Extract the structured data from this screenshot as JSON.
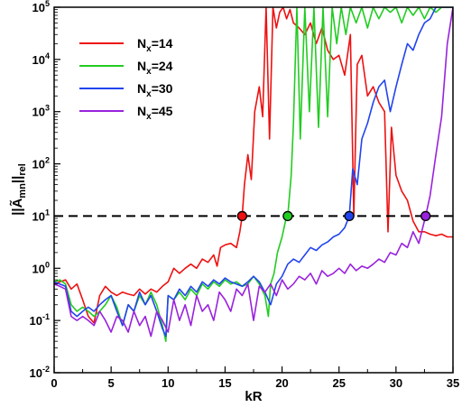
{
  "chart_data": {
    "type": "line",
    "xlabel": "kR",
    "ylabel_main": "||Ã",
    "ylabel_sub": "mn",
    "ylabel_suffix": "||",
    "ylabel_suffix_sub": "rel",
    "xlim": [
      0,
      35
    ],
    "ylim": [
      0.01,
      100000
    ],
    "yscale": "log",
    "x_ticks": [
      0,
      5,
      10,
      15,
      20,
      25,
      30,
      35
    ],
    "x_tick_labels": [
      "0",
      "5",
      "10",
      "15",
      "20",
      "25",
      "30",
      "35"
    ],
    "y_ticks": [
      0.01,
      0.1,
      1,
      10,
      100,
      1000,
      10000,
      100000
    ],
    "y_tick_labels": [
      {
        "base": "10",
        "exp": "-2"
      },
      {
        "base": "10",
        "exp": "-1"
      },
      {
        "base": "10",
        "exp": "0"
      },
      {
        "base": "10",
        "exp": "1"
      },
      {
        "base": "10",
        "exp": "2"
      },
      {
        "base": "10",
        "exp": "3"
      },
      {
        "base": "10",
        "exp": "4"
      },
      {
        "base": "10",
        "exp": "5"
      }
    ],
    "threshold": {
      "y": 10,
      "style": "dashed",
      "color": "#000000"
    },
    "legend": {
      "placement": "top-left"
    },
    "series": [
      {
        "label_main": "N",
        "label_sub": "x",
        "label_rest": "=14",
        "color": "#ee1111",
        "marker": {
          "x": 16.5,
          "y": 10
        },
        "x": [
          0,
          0.5,
          1,
          1.5,
          2,
          2.5,
          3,
          3.5,
          4,
          4.5,
          5,
          5.5,
          6,
          6.5,
          7,
          7.5,
          8,
          8.5,
          9,
          9.5,
          10,
          10.5,
          11,
          11.5,
          12,
          12.5,
          13,
          13.5,
          14,
          14.3,
          14.6,
          15,
          15.5,
          16,
          16.3,
          16.5,
          16.7,
          17,
          17.3,
          17.6,
          18,
          18.3,
          18.6,
          18.9,
          19.2,
          19.5,
          19.8,
          20.1,
          20.4,
          20.7,
          21,
          21.5,
          22,
          22.5,
          23,
          23.5,
          24,
          24.5,
          25,
          25.5,
          26,
          26.3,
          26.6,
          27,
          27.5,
          28,
          28.5,
          29,
          29.3,
          29.6,
          30,
          30.5,
          31,
          31.5,
          32,
          32.5,
          33,
          33.5,
          34,
          34.5,
          35
        ],
        "y": [
          0.5,
          0.55,
          0.6,
          0.4,
          0.5,
          0.25,
          0.12,
          0.09,
          0.3,
          0.45,
          0.35,
          0.3,
          0.35,
          0.32,
          0.3,
          0.4,
          0.32,
          0.4,
          0.35,
          0.45,
          0.55,
          1.0,
          0.8,
          1.0,
          1.2,
          1.0,
          1.5,
          1.3,
          1.8,
          1.1,
          2.5,
          2.8,
          3.0,
          2.5,
          5.0,
          10,
          40,
          150,
          50,
          1000,
          3000,
          800,
          100000,
          300,
          100000,
          40000,
          80000,
          100000,
          60000,
          90000,
          50000,
          40000,
          30000,
          50000,
          20000,
          40000,
          15000,
          10000,
          12000,
          5000,
          30000,
          10,
          8000,
          12000,
          2000,
          3000,
          1500,
          1000,
          5,
          500,
          60,
          30,
          20,
          8,
          5,
          5,
          4.5,
          4.2,
          4.5,
          4,
          4
        ]
      },
      {
        "label_main": "N",
        "label_sub": "x",
        "label_rest": "=24",
        "color": "#22cc22",
        "marker": {
          "x": 20.5,
          "y": 10
        },
        "x": [
          0,
          0.5,
          1,
          1.5,
          2,
          2.5,
          3,
          3.5,
          4,
          4.5,
          5,
          5.5,
          6,
          6.5,
          7,
          7.5,
          8,
          8.5,
          9,
          9.5,
          9.8,
          10,
          10.5,
          11,
          11.5,
          12,
          12.5,
          13,
          13.5,
          14,
          14.5,
          15,
          15.5,
          16,
          16.5,
          17,
          17.5,
          18,
          18.5,
          18.8,
          19,
          19.3,
          19.6,
          20,
          20.3,
          20.5,
          20.8,
          21,
          21.3,
          21.6,
          22,
          22.4,
          22.8,
          23.2,
          23.6,
          24,
          24.4,
          24.8,
          25.2,
          25.6,
          26,
          26.5,
          27,
          27.5,
          28,
          28.5,
          29,
          29.5,
          30,
          30.5,
          31,
          31.5,
          32,
          32.5,
          33,
          33.5,
          34,
          34.5,
          35
        ],
        "y": [
          0.55,
          0.6,
          0.5,
          0.2,
          0.15,
          0.18,
          0.15,
          0.12,
          0.15,
          0.2,
          0.3,
          0.18,
          0.08,
          0.2,
          0.15,
          0.3,
          0.2,
          0.35,
          0.2,
          0.08,
          0.04,
          0.3,
          0.25,
          0.35,
          0.25,
          0.4,
          0.3,
          0.5,
          0.4,
          0.55,
          0.45,
          0.6,
          0.5,
          0.55,
          0.45,
          0.5,
          0.7,
          0.5,
          0.3,
          0.12,
          0.5,
          0.8,
          2,
          4,
          8,
          10,
          60,
          600,
          100000,
          300,
          100000,
          1000,
          100000,
          500,
          100000,
          800,
          100000,
          20000,
          100000,
          30000,
          100000,
          50000,
          100000,
          40000,
          100000,
          60000,
          100000,
          80000,
          100000,
          50000,
          100000,
          70000,
          100000,
          60000,
          100000,
          80000,
          100000,
          100000,
          100000
        ]
      },
      {
        "label_main": "N",
        "label_sub": "x",
        "label_rest": "=30",
        "color": "#2244ee",
        "marker": {
          "x": 25.9,
          "y": 10
        },
        "x": [
          0,
          0.5,
          1,
          1.5,
          2,
          2.5,
          3,
          3.5,
          4,
          4.5,
          5,
          5.5,
          6,
          6.5,
          7,
          7.5,
          8,
          8.5,
          9,
          9.5,
          9.8,
          10,
          10.5,
          11,
          11.5,
          12,
          12.5,
          13,
          13.5,
          14,
          14.5,
          15,
          15.5,
          16,
          16.5,
          17,
          17.5,
          18,
          18.5,
          19,
          19.5,
          20,
          20.5,
          21,
          21.5,
          22,
          22.5,
          23,
          23.5,
          24,
          24.5,
          25,
          25.5,
          25.9,
          26.2,
          26.6,
          27,
          27.5,
          28,
          28.5,
          29,
          29.5,
          30,
          30.5,
          31,
          31.5,
          32,
          32.5,
          33,
          33.5,
          34,
          34.5,
          35
        ],
        "y": [
          0.55,
          0.5,
          0.45,
          0.15,
          0.12,
          0.15,
          0.18,
          0.15,
          0.2,
          0.25,
          0.3,
          0.15,
          0.08,
          0.2,
          0.15,
          0.35,
          0.2,
          0.3,
          0.15,
          0.07,
          0.05,
          0.3,
          0.25,
          0.4,
          0.3,
          0.45,
          0.35,
          0.55,
          0.45,
          0.6,
          0.5,
          0.65,
          0.55,
          0.5,
          0.45,
          0.55,
          0.7,
          0.55,
          0.35,
          0.2,
          0.5,
          0.7,
          1.2,
          1.5,
          1.3,
          1.8,
          2.5,
          2.2,
          2.8,
          3.2,
          4.0,
          4.5,
          6.0,
          10,
          80,
          40,
          300,
          600,
          1500,
          3000,
          4000,
          1000,
          3000,
          8000,
          20000,
          15000,
          30000,
          50000,
          60000,
          100000,
          100000,
          100000,
          100000
        ]
      },
      {
        "label_main": "N",
        "label_sub": "x",
        "label_rest": "=45",
        "color": "#9922dd",
        "marker": {
          "x": 32.6,
          "y": 10
        },
        "x": [
          0,
          0.5,
          1,
          1.5,
          2,
          2.5,
          3,
          3.5,
          4,
          4.5,
          5,
          5.5,
          6,
          6.5,
          7,
          7.5,
          8,
          8.5,
          9,
          9.5,
          10,
          10.5,
          11,
          11.5,
          12,
          12.5,
          13,
          13.5,
          14,
          14.5,
          15,
          15.5,
          16,
          16.5,
          17,
          17.5,
          18,
          18.5,
          19,
          19.5,
          20,
          20.5,
          21,
          21.5,
          22,
          22.5,
          23,
          23.5,
          24,
          24.5,
          25,
          25.5,
          26,
          26.5,
          27,
          27.5,
          28,
          28.5,
          29,
          29.5,
          30,
          30.5,
          31,
          31.5,
          32,
          32.6,
          33,
          33.5,
          34,
          34.5,
          35
        ],
        "y": [
          0.5,
          0.45,
          0.4,
          0.12,
          0.1,
          0.12,
          0.1,
          0.08,
          0.15,
          0.1,
          0.06,
          0.12,
          0.1,
          0.06,
          0.15,
          0.08,
          0.12,
          0.05,
          0.15,
          0.1,
          0.06,
          0.25,
          0.1,
          0.2,
          0.08,
          0.3,
          0.15,
          0.2,
          0.1,
          0.35,
          0.25,
          0.15,
          0.4,
          0.3,
          0.5,
          0.1,
          0.45,
          0.35,
          0.5,
          0.3,
          0.6,
          0.4,
          0.5,
          0.7,
          0.6,
          0.8,
          0.5,
          0.9,
          0.7,
          0.8,
          1.0,
          0.8,
          1.2,
          0.9,
          1.1,
          1.0,
          1.2,
          1.5,
          1.3,
          2.0,
          1.8,
          3.0,
          2.5,
          5.0,
          3.0,
          10,
          25,
          150,
          800,
          20000,
          100000
        ]
      }
    ]
  }
}
